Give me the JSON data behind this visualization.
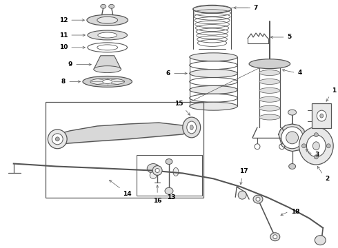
{
  "bg_color": "#ffffff",
  "line_color": "#555555",
  "label_color": "#000000",
  "lfs": 6.5,
  "fig_width": 4.9,
  "fig_height": 3.6,
  "dpi": 100
}
